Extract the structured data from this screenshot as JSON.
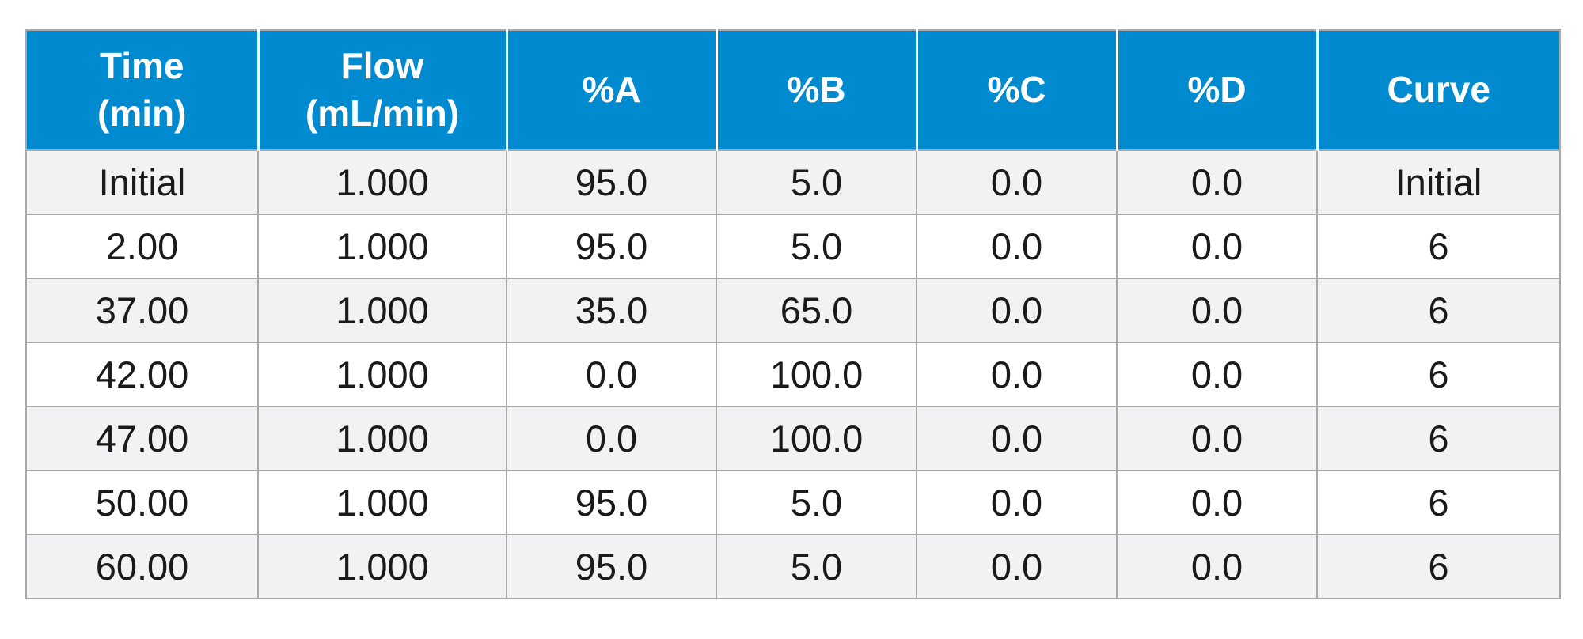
{
  "table": {
    "header_bg": "#008acf",
    "odd_row_bg": "#f2f2f4",
    "even_row_bg": "#ffffff",
    "headers": [
      {
        "line1": "Time",
        "line2": "(min)"
      },
      {
        "line1": "Flow",
        "line2": "(mL/min)"
      },
      {
        "line1": "%A",
        "line2": ""
      },
      {
        "line1": "%B",
        "line2": ""
      },
      {
        "line1": "%C",
        "line2": ""
      },
      {
        "line1": "%D",
        "line2": ""
      },
      {
        "line1": "Curve",
        "line2": ""
      }
    ],
    "rows": [
      [
        "Initial",
        "1.000",
        "95.0",
        "5.0",
        "0.0",
        "0.0",
        "Initial"
      ],
      [
        "2.00",
        "1.000",
        "95.0",
        "5.0",
        "0.0",
        "0.0",
        "6"
      ],
      [
        "37.00",
        "1.000",
        "35.0",
        "65.0",
        "0.0",
        "0.0",
        "6"
      ],
      [
        "42.00",
        "1.000",
        "0.0",
        "100.0",
        "0.0",
        "0.0",
        "6"
      ],
      [
        "47.00",
        "1.000",
        "0.0",
        "100.0",
        "0.0",
        "0.0",
        "6"
      ],
      [
        "50.00",
        "1.000",
        "95.0",
        "5.0",
        "0.0",
        "0.0",
        "6"
      ],
      [
        "60.00",
        "1.000",
        "95.0",
        "5.0",
        "0.0",
        "0.0",
        "6"
      ]
    ]
  }
}
